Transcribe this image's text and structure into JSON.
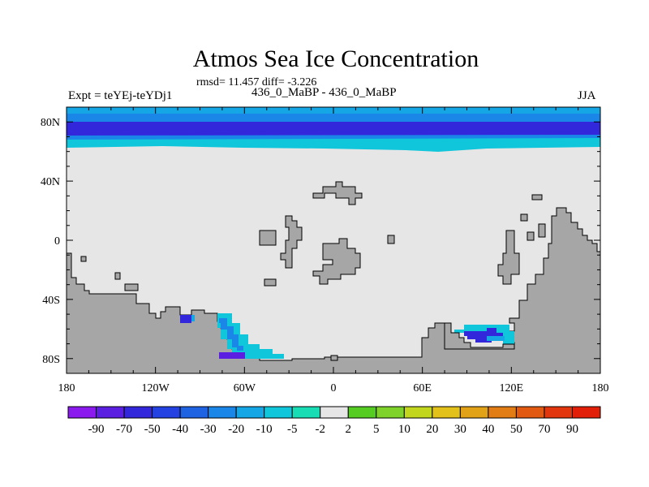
{
  "chart_data": {
    "type": "heatmap",
    "title": "Atmos Sea Ice Concentration",
    "stats_line": "rmsd= 11.457 diff= -3.226",
    "left_label": "Expt = teYEj-teYDj1",
    "center_label": "436_0_MaBP - 436_0_MaBP",
    "right_label": "JJA",
    "x_range": [
      -180,
      180
    ],
    "y_range": [
      -90,
      90
    ],
    "x_ticks": [
      {
        "value": -180,
        "label": "180"
      },
      {
        "value": -120,
        "label": "120W"
      },
      {
        "value": -60,
        "label": "60W"
      },
      {
        "value": 0,
        "label": "0"
      },
      {
        "value": 60,
        "label": "60E"
      },
      {
        "value": 120,
        "label": "120E"
      },
      {
        "value": 180,
        "label": "180"
      }
    ],
    "y_ticks": [
      {
        "value": 80,
        "label": "80N"
      },
      {
        "value": 40,
        "label": "40N"
      },
      {
        "value": 0,
        "label": "0"
      },
      {
        "value": -40,
        "label": "40S"
      },
      {
        "value": -80,
        "label": "80S"
      }
    ],
    "colorbar": {
      "labels": [
        "-90",
        "-70",
        "-50",
        "-40",
        "-30",
        "-20",
        "-10",
        "-5",
        "-2",
        "2",
        "5",
        "10",
        "20",
        "30",
        "40",
        "50",
        "70",
        "90"
      ],
      "colors": [
        "#8a1aee",
        "#5a1fe0",
        "#3327dc",
        "#2442e2",
        "#1f62e2",
        "#1a86e8",
        "#15a6e6",
        "#10c6da",
        "#18dcb4",
        "#e6e6e6",
        "#55cc22",
        "#7fd22a",
        "#c2d61e",
        "#e2c21a",
        "#e2a218",
        "#e27c14",
        "#e25a12",
        "#e2360e",
        "#e2200a"
      ]
    },
    "land_color": "#a6a6a6",
    "background_color": "#e6e6e6",
    "features": [
      {
        "name": "arctic-band",
        "anomaly_level": "-50",
        "lat_range": [
          66,
          80
        ]
      },
      {
        "name": "arctic-edge",
        "anomaly_level": "-5",
        "lat_range": [
          62,
          90
        ]
      },
      {
        "name": "weddell-sea-anomaly",
        "anomaly_level": "-20"
      },
      {
        "name": "east-antarctic-anomaly",
        "anomaly_level": "-50"
      }
    ]
  }
}
